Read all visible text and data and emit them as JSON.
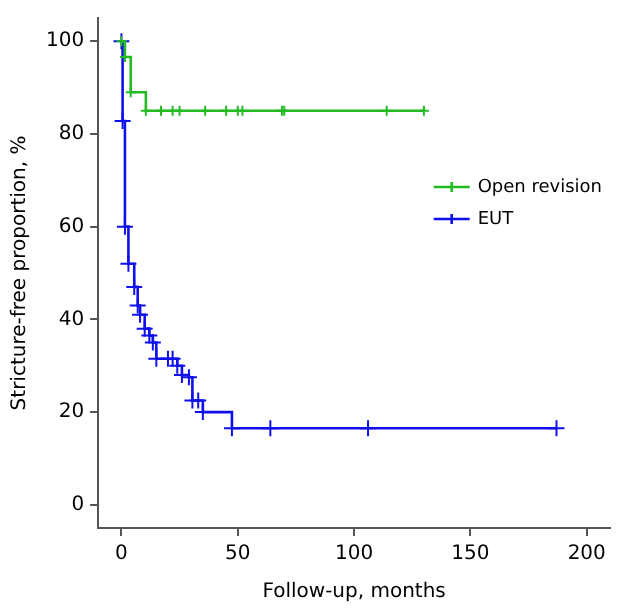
{
  "chart_data": {
    "type": "step",
    "xlabel": "Follow-up, months",
    "ylabel": "Stricture-free proportion, %",
    "xlim": [
      -10,
      210
    ],
    "xticks": [
      0,
      50,
      100,
      150,
      200
    ],
    "ylim": [
      -5,
      105
    ],
    "yticks": [
      0,
      20,
      40,
      60,
      80,
      100
    ],
    "legend": "right",
    "grid": false,
    "marker": "cross",
    "line_style": "solid",
    "series": [
      {
        "name": "Open revision",
        "color": "#22bb22",
        "x": [
          0,
          1.5,
          4,
          10.5,
          17,
          22,
          25,
          36,
          45,
          50,
          52,
          69,
          70,
          114,
          130
        ],
        "values": [
          100,
          96.6,
          89,
          85,
          85,
          85,
          85,
          85,
          85,
          85,
          85,
          85,
          85,
          85,
          85
        ]
      },
      {
        "name": "EUT",
        "color": "#1010ee",
        "x": [
          0,
          0.5,
          1.5,
          3,
          5.5,
          7,
          8,
          10,
          12,
          13.5,
          15,
          20,
          22,
          24,
          26,
          29,
          30.5,
          33,
          35,
          47.5,
          64,
          106,
          187
        ],
        "values": [
          100,
          82.8,
          60,
          52,
          47,
          43,
          41,
          38,
          36.5,
          35,
          31.5,
          31.5,
          31.5,
          30,
          28,
          27.5,
          22.5,
          22.5,
          20,
          16.5,
          16.5,
          16.5,
          16.5
        ]
      }
    ]
  }
}
